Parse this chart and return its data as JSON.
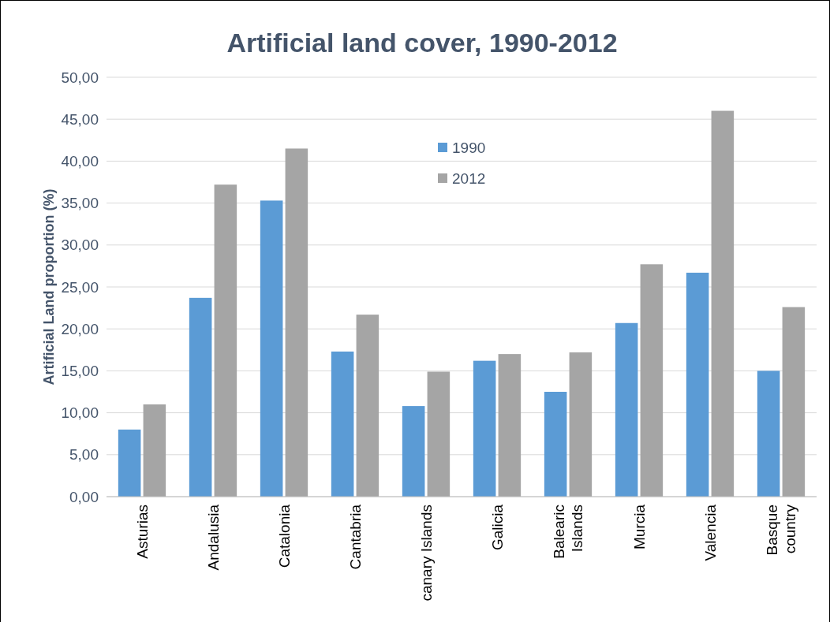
{
  "chart_data": {
    "type": "bar",
    "title": "Artificial land cover, 1990-2012",
    "ylabel": "Artificial Land proportion  (%)",
    "categories": [
      "Asturias",
      "Andalusia",
      "Catalonia",
      "Cantabria",
      "canary Islands",
      "Galicia",
      "Balearic\nIslands",
      "Murcia",
      "Valencia",
      "Basque\ncountry"
    ],
    "series": [
      {
        "name": "1990",
        "color": "#5b9bd5",
        "values": [
          8.0,
          23.7,
          35.3,
          17.3,
          10.8,
          16.2,
          12.5,
          20.7,
          26.7,
          15.0
        ]
      },
      {
        "name": "2012",
        "color": "#a5a5a5",
        "values": [
          11.0,
          37.2,
          41.5,
          21.7,
          14.9,
          17.0,
          17.2,
          27.7,
          46.0,
          22.6
        ]
      }
    ],
    "ylim": [
      0,
      50
    ],
    "yticks": [
      {
        "value": 0,
        "label": "0,00"
      },
      {
        "value": 5,
        "label": "5,00"
      },
      {
        "value": 10,
        "label": "10,00"
      },
      {
        "value": 15,
        "label": "15,00"
      },
      {
        "value": 20,
        "label": "20,00"
      },
      {
        "value": 25,
        "label": "25,00"
      },
      {
        "value": 30,
        "label": "30,00"
      },
      {
        "value": 35,
        "label": "35,00"
      },
      {
        "value": 40,
        "label": "40,00"
      },
      {
        "value": 45,
        "label": "45,00"
      },
      {
        "value": 50,
        "label": "50,00"
      }
    ],
    "grid": "y",
    "legend": "top"
  }
}
